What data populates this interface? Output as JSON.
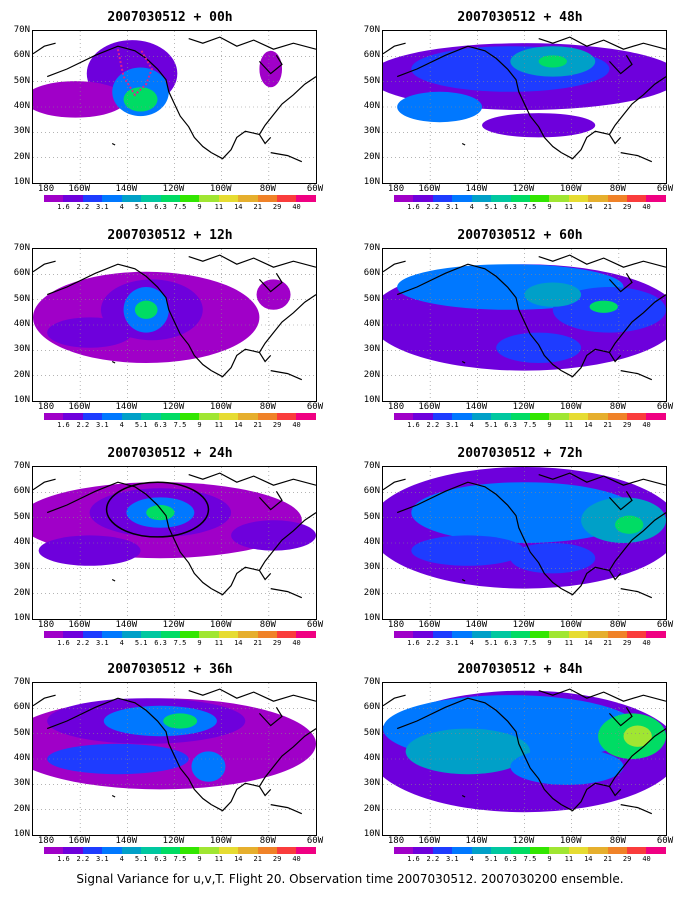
{
  "panels": [
    {
      "title": "2007030512 + 00h"
    },
    {
      "title": "2007030512 + 48h"
    },
    {
      "title": "2007030512 + 12h"
    },
    {
      "title": "2007030512 + 60h"
    },
    {
      "title": "2007030512 + 24h"
    },
    {
      "title": "2007030512 + 72h"
    },
    {
      "title": "2007030512 + 36h"
    },
    {
      "title": "2007030512 + 84h"
    }
  ],
  "lat_labels": [
    "70N",
    "60N",
    "50N",
    "40N",
    "30N",
    "20N",
    "10N"
  ],
  "lon_labels": [
    "180",
    "160W",
    "140W",
    "120W",
    "100W",
    "80W",
    "60W"
  ],
  "colorbar": {
    "labels": [
      "1.6",
      "2.2",
      "3.1",
      "4",
      "5.1",
      "6.3",
      "7.5",
      "9",
      "11",
      "14",
      "21",
      "29",
      "40"
    ],
    "colors": [
      "#a000c8",
      "#6e00dc",
      "#1e3cff",
      "#0078ff",
      "#00a0c8",
      "#00c8a0",
      "#00dc64",
      "#32e600",
      "#a0e632",
      "#e6dc32",
      "#e6af2d",
      "#f08228",
      "#fa3c3c",
      "#f00082"
    ]
  },
  "caption": "Signal Variance for u,v,T. Flight 20. Observation time 2007030512. 2007030200 ensemble."
}
